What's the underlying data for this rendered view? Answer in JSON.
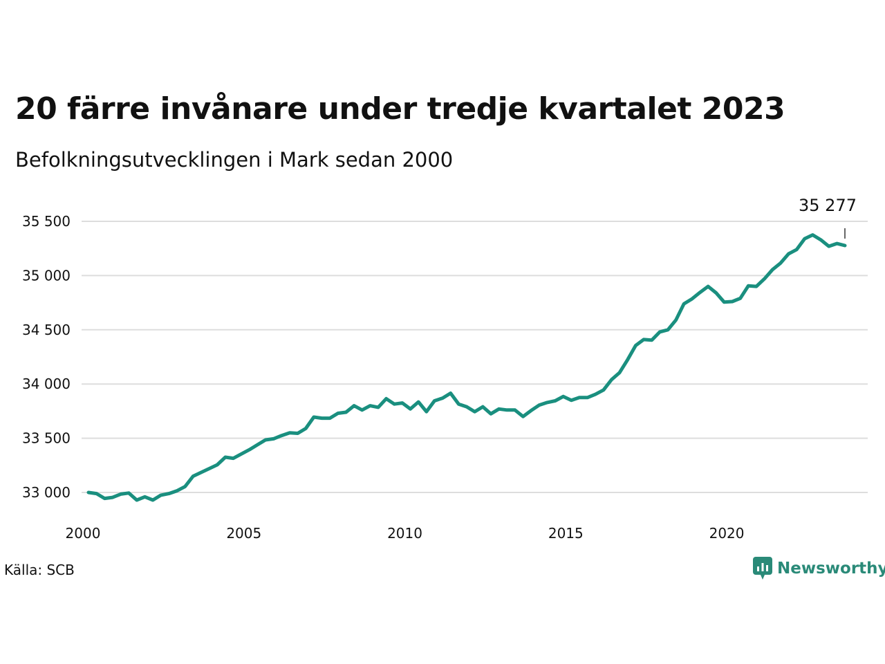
{
  "title": "20 färre invånare under tredje kvartalet 2023",
  "subtitle": "Befolkningsutvecklingen i Mark sedan 2000",
  "source": "Källa: SCB",
  "brand": "Newsworthy",
  "icon": "newsworthy-logo-icon",
  "colors": {
    "line": "#1a8f7f",
    "grid": "#dddddd",
    "brand": "#2a8a78"
  },
  "chart_data": {
    "type": "line",
    "title": "20 färre invånare under tredje kvartalet 2023",
    "subtitle": "Befolkningsutvecklingen i Mark sedan 2000",
    "xlabel": "",
    "ylabel": "",
    "xlim": [
      2000,
      2024.4
    ],
    "ylim": [
      32800,
      35700
    ],
    "grid": "horizontal",
    "legend": "none",
    "y_ticks": [
      33000,
      33500,
      34000,
      34500,
      35000,
      35500
    ],
    "y_tick_labels": [
      "33 000",
      "33 500",
      "34 000",
      "34 500",
      "35 000",
      "35 500"
    ],
    "x_ticks": [
      2000,
      2005,
      2010,
      2015,
      2020
    ],
    "x_tick_labels": [
      "2000",
      "2005",
      "2010",
      "2015",
      "2020"
    ],
    "annotation": {
      "text": "35 277",
      "x": 2023.5,
      "y": 35277
    },
    "series": [
      {
        "x_start": 2000,
        "step": 0.25,
        "values": [
          33000,
          32990,
          32945,
          32955,
          32985,
          32995,
          32930,
          32960,
          32930,
          32975,
          32990,
          33015,
          33055,
          33150,
          33185,
          33220,
          33255,
          33325,
          33315,
          33355,
          33395,
          33440,
          33485,
          33495,
          33525,
          33550,
          33545,
          33590,
          33695,
          33685,
          33685,
          33730,
          33740,
          33800,
          33760,
          33800,
          33785,
          33865,
          33815,
          33825,
          33770,
          33835,
          33745,
          33845,
          33870,
          33915,
          33815,
          33790,
          33745,
          33790,
          33725,
          33770,
          33760,
          33760,
          33700,
          33755,
          33805,
          33830,
          33845,
          33885,
          33850,
          33875,
          33875,
          33905,
          33945,
          34040,
          34105,
          34225,
          34355,
          34410,
          34405,
          34480,
          34500,
          34590,
          34740,
          34785,
          34845,
          34900,
          34840,
          34755,
          34760,
          34790,
          34905,
          34900,
          34970,
          35055,
          35115,
          35200,
          35240,
          35340,
          35375,
          35330,
          35270,
          35295,
          35277
        ]
      }
    ]
  }
}
